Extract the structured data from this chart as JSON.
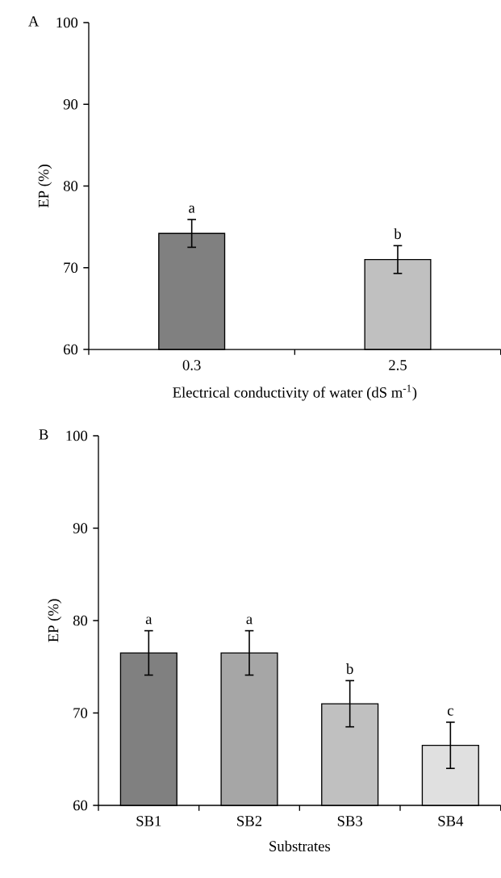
{
  "chart_data": [
    {
      "type": "bar",
      "title": "A",
      "xlabel": "Electrical conductivity of water (dS m$^{-1}$)",
      "ylabel": "EP (%)",
      "categories": [
        "0.3",
        "2.5"
      ],
      "values": [
        74.2,
        71.0
      ],
      "errors": [
        1.7,
        1.7
      ],
      "colors": [
        "#808080",
        "#c0c0c0"
      ],
      "ylim": [
        60,
        100
      ],
      "yticks": [
        60,
        70,
        80,
        90,
        100
      ],
      "grid": false,
      "annotations": [
        {
          "text": "a",
          "x": "0.3",
          "y": 75.9
        },
        {
          "text": "b",
          "x": "2.5",
          "y": 72.7
        }
      ]
    },
    {
      "type": "bar",
      "title": "B",
      "xlabel": "Substrates",
      "ylabel": "EP (%)",
      "categories": [
        "SB1",
        "SB2",
        "SB3",
        "SB4"
      ],
      "values": [
        76.5,
        76.5,
        71.0,
        66.5
      ],
      "errors": [
        2.4,
        2.4,
        2.5,
        2.5
      ],
      "colors": [
        "#808080",
        "#a6a6a6",
        "#c0c0c0",
        "#e0e0e0"
      ],
      "ylim": [
        60,
        100
      ],
      "yticks": [
        60,
        70,
        80,
        90,
        100
      ],
      "grid": false,
      "annotations": [
        {
          "text": "a",
          "x": "SB1",
          "y": 78.9
        },
        {
          "text": "a",
          "x": "SB2",
          "y": 78.9
        },
        {
          "text": "b",
          "x": "SB3",
          "y": 73.5
        },
        {
          "text": "c",
          "x": "SB4",
          "y": 69.0
        }
      ]
    }
  ]
}
